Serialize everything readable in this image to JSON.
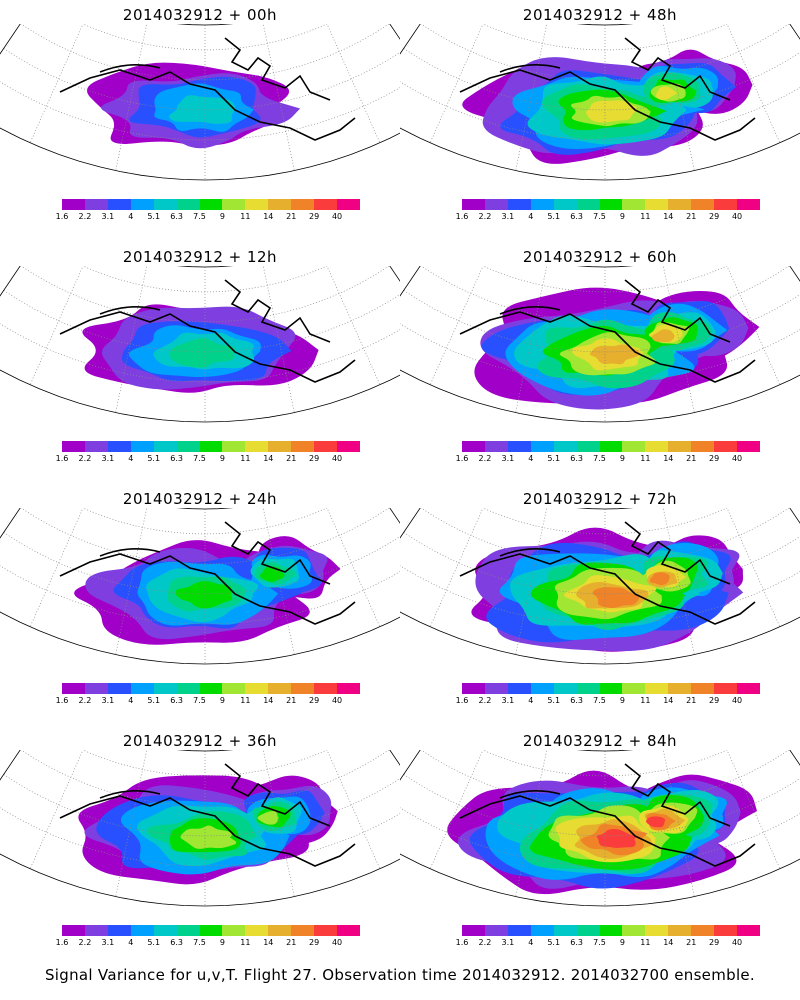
{
  "caption": "Signal Variance for u,v,T. Flight 27. Observation time 2014032912. 2014032700 ensemble.",
  "colorbar": {
    "colors": [
      "#a000c8",
      "#7f3fe0",
      "#2850ff",
      "#00a0ff",
      "#00c8c8",
      "#00d28c",
      "#00dc00",
      "#a0e632",
      "#e6dc32",
      "#e6af2d",
      "#f08228",
      "#fa3c3c",
      "#f00082"
    ],
    "labels": [
      "1.6",
      "2.2",
      "3.1",
      "4",
      "5.1",
      "6.3",
      "7.5",
      "9",
      "11",
      "14",
      "21",
      "29",
      "40"
    ]
  },
  "panels": [
    {
      "title": "2014032912 + 00h",
      "level": 0
    },
    {
      "title": "2014032912 + 48h",
      "level": 4
    },
    {
      "title": "2014032912 + 12h",
      "level": 1
    },
    {
      "title": "2014032912 + 60h",
      "level": 5
    },
    {
      "title": "2014032912 + 24h",
      "level": 2
    },
    {
      "title": "2014032912 + 72h",
      "level": 6
    },
    {
      "title": "2014032912 + 36h",
      "level": 3
    },
    {
      "title": "2014032912 + 84h",
      "level": 7
    }
  ]
}
